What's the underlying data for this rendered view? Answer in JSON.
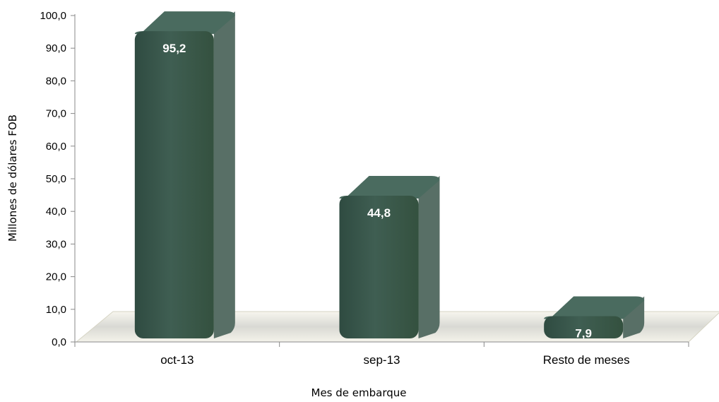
{
  "chart_data": {
    "type": "bar",
    "categories": [
      "oct-13",
      "sep-13",
      "Resto de meses"
    ],
    "values": [
      95.2,
      44.8,
      7.9
    ],
    "value_labels": [
      "95,2",
      "44,8",
      "7,9"
    ],
    "title": "",
    "xlabel": "Mes de embarque",
    "ylabel": "Millones de dólares FOB",
    "ylim": [
      0,
      100
    ],
    "yticks": [
      "0,0",
      "10,0",
      "20,0",
      "30,0",
      "40,0",
      "50,0",
      "60,0",
      "70,0",
      "80,0",
      "90,0",
      "100,0"
    ],
    "grid": false,
    "legend": "none",
    "colors": {
      "bar": "#3b5a4e",
      "bar_top": "#4a6b5f",
      "bar_side": "#586f66",
      "floor": "#f3f1e4"
    }
  }
}
